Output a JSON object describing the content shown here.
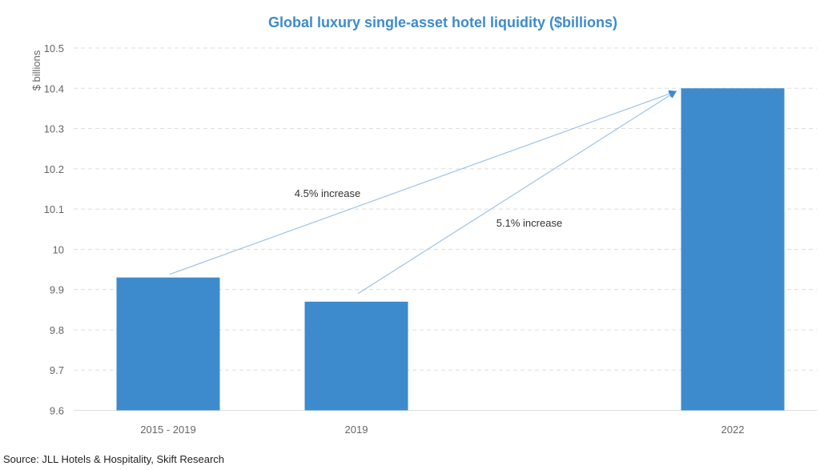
{
  "chart_data": {
    "type": "bar",
    "title": "Global luxury single-asset hotel liquidity ($billions)",
    "xlabel": "",
    "ylabel": "$ billions",
    "ylim": [
      9.6,
      10.5
    ],
    "yticks": [
      "9.6",
      "9.7",
      "9.8",
      "9.9",
      "10",
      "10.1",
      "10.2",
      "10.3",
      "10.4",
      "10.5"
    ],
    "grid": true,
    "categories": [
      "2015 - 2019",
      "2019",
      "2022"
    ],
    "values": [
      9.93,
      9.87,
      10.4
    ],
    "bar_color": "#3d8bcd",
    "annotations": [
      {
        "text": "4.5% increase",
        "from": "2015 - 2019",
        "to": "2022"
      },
      {
        "text": "5.1% increase",
        "from": "2019",
        "to": "2022"
      }
    ]
  },
  "source": "Source: JLL Hotels & Hospitality, Skift Research"
}
